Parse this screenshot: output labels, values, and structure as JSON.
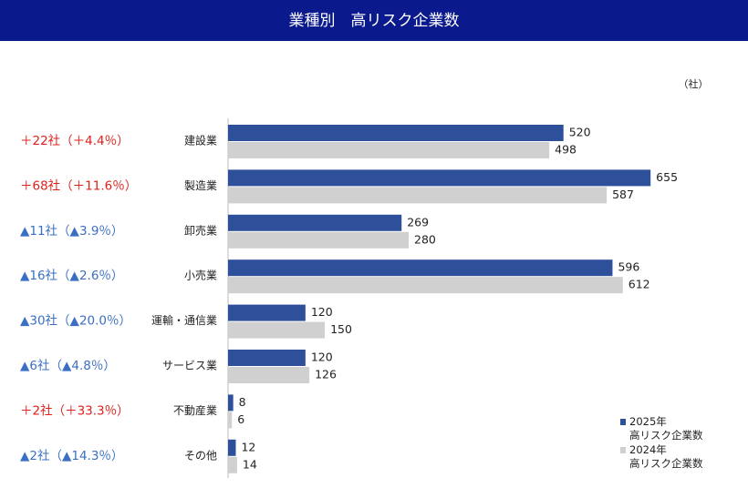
{
  "chart_data": {
    "type": "hbar",
    "title": "業種別　高リスク企業数",
    "unit": "（社）",
    "categories": [
      "建設業",
      "製造業",
      "卸売業",
      "小売業",
      "運輸・通信業",
      "サービス業",
      "不動産業",
      "その他"
    ],
    "series": [
      {
        "name": "2025年\n高リスク企業数",
        "color": "#2e4f9a",
        "values": [
          520,
          655,
          269,
          596,
          120,
          120,
          8,
          12
        ]
      },
      {
        "name": "2024年\n高リスク企業数",
        "color": "#d0d0d0",
        "values": [
          498,
          587,
          280,
          612,
          150,
          126,
          6,
          14
        ]
      }
    ],
    "changes": [
      {
        "text": "＋22社（＋4.4％）",
        "color": "#e0201b"
      },
      {
        "text": "＋68社（＋11.6％）",
        "color": "#e0201b"
      },
      {
        "text": "▲11社（▲3.9％）",
        "color": "#3a6fc4"
      },
      {
        "text": "▲16社（▲2.6％）",
        "color": "#3a6fc4"
      },
      {
        "text": "▲30社（▲20.0％）",
        "color": "#3a6fc4"
      },
      {
        "text": "▲6社（▲4.8％）",
        "color": "#3a6fc4"
      },
      {
        "text": "＋2社（＋33.3％）",
        "color": "#e0201b"
      },
      {
        "text": "▲2社（▲14.3％）",
        "color": "#3a6fc4"
      }
    ],
    "xlim": [
      0,
      700
    ]
  }
}
